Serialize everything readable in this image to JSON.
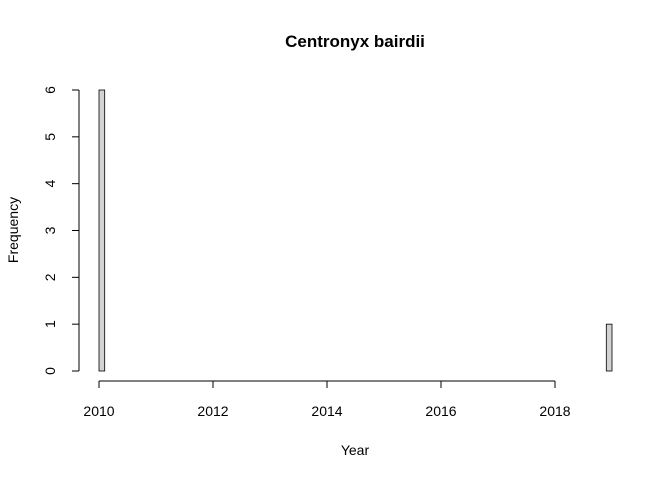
{
  "chart_data": {
    "type": "bar",
    "title": "Centronyx bairdii",
    "xlabel": "Year",
    "ylabel": "Frequency",
    "xlim": [
      2010,
      2019
    ],
    "ylim": [
      0,
      6
    ],
    "x_ticks": [
      2010,
      2012,
      2014,
      2016,
      2018
    ],
    "y_ticks": [
      0,
      1,
      2,
      3,
      4,
      5,
      6
    ],
    "bin_width": 0.1,
    "bins": [
      {
        "start": 2010.0,
        "end": 2010.1,
        "count": 6
      },
      {
        "start": 2018.9,
        "end": 2019.0,
        "count": 1
      }
    ],
    "bar_fill": "#d3d3d3",
    "bar_stroke": "#000000",
    "grid": false
  }
}
